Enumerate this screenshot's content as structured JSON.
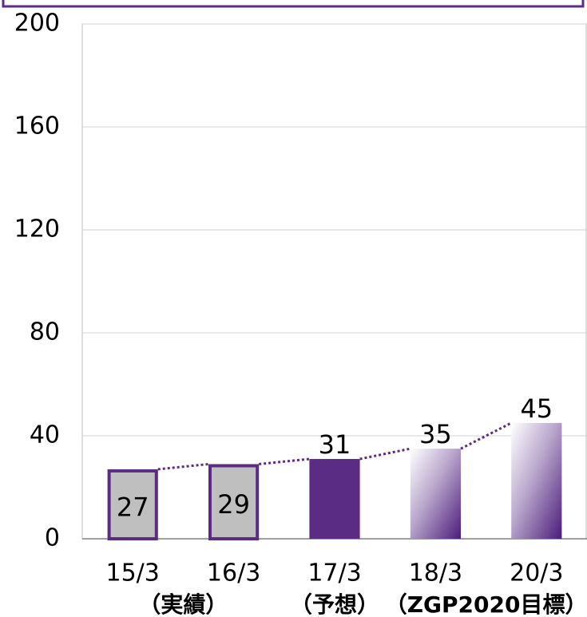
{
  "chart_data": {
    "type": "bar",
    "categories": [
      "15/3",
      "16/3",
      "17/3",
      "18/3",
      "20/3"
    ],
    "values": [
      27,
      29,
      31,
      35,
      45
    ],
    "bar_styles": [
      "outline",
      "outline",
      "solid",
      "gradient",
      "gradient"
    ],
    "category_groups": [
      {
        "label": "（実績）",
        "from": 0,
        "to": 1
      },
      {
        "label": "（予想）",
        "from": 2,
        "to": 2
      },
      {
        "label": "（ZGP2020目標）",
        "from": 3,
        "to": 4
      }
    ],
    "color": "#5b2c83",
    "outline_fill": "#bfbfbf",
    "ylim": [
      0,
      200
    ],
    "yticks": [
      0,
      40,
      80,
      120,
      160,
      200
    ],
    "grid": true
  }
}
